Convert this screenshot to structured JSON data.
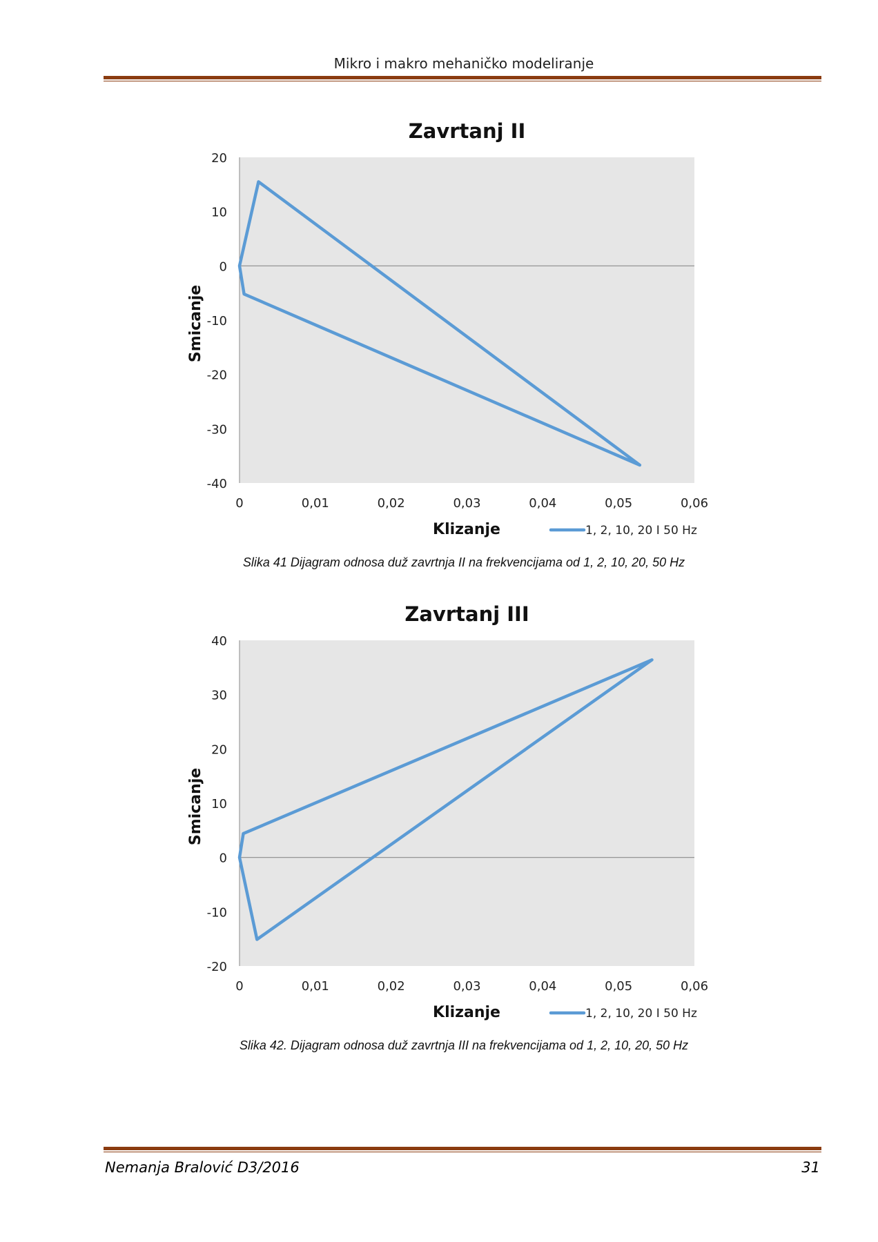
{
  "header": {
    "title": "Mikro i makro mehaničko modeliranje"
  },
  "footer": {
    "author": "Nemanja Bralović D3/2016",
    "page_number": "31"
  },
  "captions": [
    "Slika 41  Dijagram odnosa duž zavrtnja II na frekvencijama od 1, 2, 10, 20, 50 Hz",
    "Slika 42. Dijagram odnosa duž zavrtnja III na frekvencijama od 1, 2, 10, 20, 50 Hz"
  ],
  "colors": {
    "series": "#5b9bd5",
    "plot_bg": "#e6e6e6",
    "rule": "#8b3c10"
  },
  "chart_data": [
    {
      "type": "line",
      "title": "Zavrtanj II",
      "xlabel": "Klizanje",
      "ylabel": "Smicanje",
      "xlim": [
        0,
        0.06
      ],
      "ylim": [
        -40,
        20
      ],
      "xticks": [
        0,
        0.01,
        0.02,
        0.03,
        0.04,
        0.05,
        0.06
      ],
      "xtick_labels": [
        "0",
        "0,01",
        "0,02",
        "0,03",
        "0,04",
        "0,05",
        "0,06"
      ],
      "yticks": [
        20,
        10,
        0,
        -10,
        -20,
        -30,
        -40
      ],
      "ytick_labels": [
        "20",
        "10",
        "0",
        "-10",
        "-20",
        "-30",
        "-40"
      ],
      "legend_position": "bottom-right",
      "grid": false,
      "series": [
        {
          "name": "1, 2, 10, 20 I 50 Hz",
          "x": [
            0,
            0.0025,
            0.0528,
            0.0006,
            0
          ],
          "y": [
            0,
            15.5,
            -36.7,
            -5.2,
            0
          ]
        }
      ]
    },
    {
      "type": "line",
      "title": "Zavrtanj III",
      "xlabel": "Klizanje",
      "ylabel": "Smicanje",
      "xlim": [
        0,
        0.06
      ],
      "ylim": [
        -20,
        40
      ],
      "xticks": [
        0,
        0.01,
        0.02,
        0.03,
        0.04,
        0.05,
        0.06
      ],
      "xtick_labels": [
        "0",
        "0,01",
        "0,02",
        "0,03",
        "0,04",
        "0,05",
        "0,06"
      ],
      "yticks": [
        40,
        30,
        20,
        10,
        0,
        -10,
        -20
      ],
      "ytick_labels": [
        "40",
        "30",
        "20",
        "10",
        "0",
        "-10",
        "-20"
      ],
      "legend_position": "bottom-right",
      "grid": false,
      "series": [
        {
          "name": "1, 2, 10, 20 I 50 Hz",
          "x": [
            0,
            0.0005,
            0.0544,
            0.0023,
            0
          ],
          "y": [
            0,
            4.4,
            36.4,
            -15.1,
            0
          ]
        }
      ]
    }
  ]
}
